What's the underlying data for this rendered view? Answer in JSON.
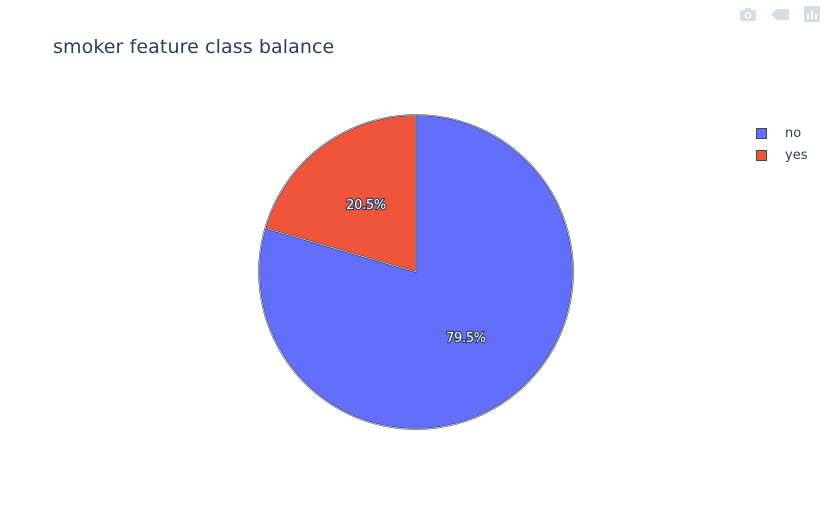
{
  "modebar": {
    "icons": [
      "camera-icon",
      "pan-icon",
      "plotly-logo-icon"
    ],
    "color": "#d9dde3"
  },
  "chart_data": {
    "type": "pie",
    "title": "smoker feature class balance",
    "labels": [
      "no",
      "yes"
    ],
    "values": [
      79.5,
      20.5
    ],
    "value_labels": [
      "79.5%",
      "20.5%"
    ],
    "colors": [
      "#636efa",
      "#ef553b"
    ],
    "legend_position": "top-right",
    "direction": "clockwise",
    "start": "top"
  }
}
